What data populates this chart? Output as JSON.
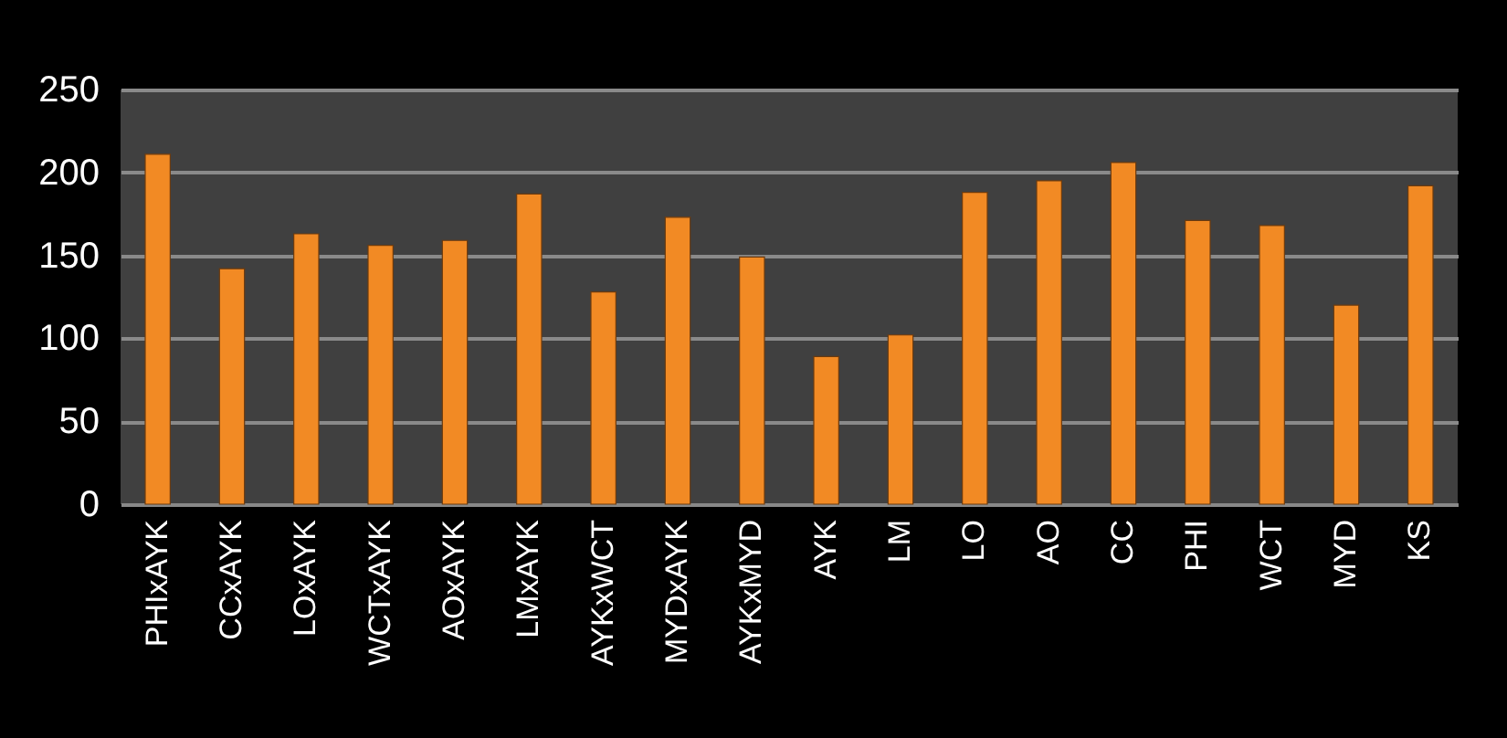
{
  "chart_data": {
    "type": "bar",
    "categories": [
      "PHIxAYK",
      "CCxAYK",
      "LOxAYK",
      "WCTxAYK",
      "AOxAYK",
      "LMxAYK",
      "AYKxWCT",
      "MYDxAYK",
      "AYKxMYD",
      "AYK",
      "LM",
      "LO",
      "AO",
      "CC",
      "PHI",
      "WCT",
      "MYD",
      "KS"
    ],
    "values": [
      211,
      142,
      163,
      156,
      159,
      187,
      128,
      173,
      149,
      89,
      102,
      188,
      195,
      206,
      171,
      168,
      120,
      192
    ],
    "color": "#f28a24",
    "ylim": [
      0,
      250
    ],
    "yticks": [
      0,
      50,
      100,
      150,
      200,
      250
    ],
    "grid": "y"
  }
}
